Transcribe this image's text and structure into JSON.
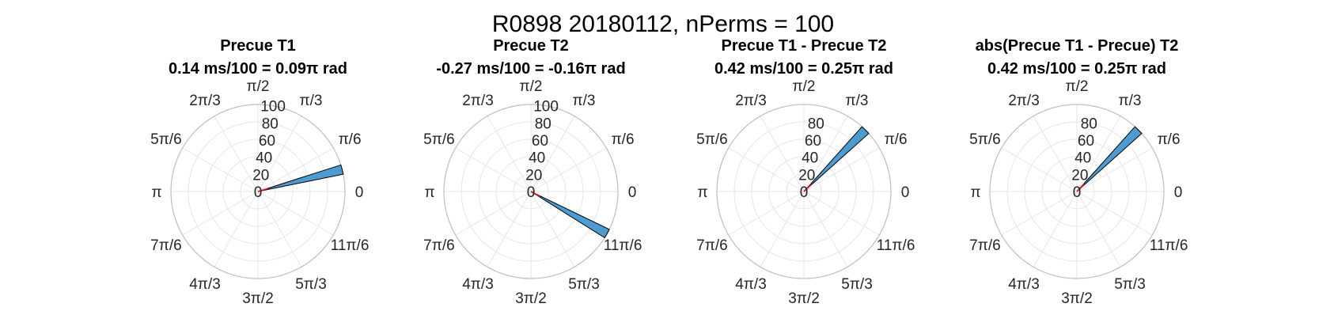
{
  "figure_title": "R0898 20180112, nPerms = 100",
  "colors": {
    "bar_fill": "#4d9bd1",
    "bar_edge": "#000000",
    "mean_line": "#d2151c",
    "grid": "#e6e6e6",
    "outer_ring": "#bfbfbf"
  },
  "chart_data": [
    {
      "type": "polar-histogram",
      "title_line1": "Precue T1",
      "title_line2": "0.14 ms/100 = 0.09π rad",
      "theta_ticks": [
        "0",
        "π/6",
        "π/3",
        "π/2",
        "2π/3",
        "5π/6",
        "π",
        "7π/6",
        "4π/3",
        "3π/2",
        "5π/3",
        "11π/6"
      ],
      "r_ticks": [
        0,
        20,
        40,
        60,
        80,
        100
      ],
      "rlim": [
        0,
        100
      ],
      "bars": [
        {
          "theta_start_rad": 0.2,
          "theta_end_rad": 0.31,
          "count": 100
        }
      ],
      "mean_angle_rad": 0.28
    },
    {
      "type": "polar-histogram",
      "title_line1": "Precue T2",
      "title_line2": "-0.27 ms/100 = -0.16π rad",
      "theta_ticks": [
        "0",
        "π/6",
        "π/3",
        "π/2",
        "2π/3",
        "5π/6",
        "π",
        "7π/6",
        "4π/3",
        "3π/2",
        "5π/3",
        "11π/6"
      ],
      "r_ticks": [
        0,
        20,
        40,
        60,
        80,
        100
      ],
      "rlim": [
        0,
        100
      ],
      "bars": [
        {
          "theta_start_rad": -0.56,
          "theta_end_rad": -0.45,
          "count": 100
        }
      ],
      "mean_angle_rad": -0.5
    },
    {
      "type": "polar-histogram",
      "title_line1": "Precue T1 - Precue T2",
      "title_line2": "0.42 ms/100 = 0.25π rad",
      "theta_ticks": [
        "0",
        "π/6",
        "π/3",
        "π/2",
        "2π/3",
        "5π/6",
        "π",
        "7π/6",
        "4π/3",
        "3π/2",
        "5π/3",
        "11π/6"
      ],
      "r_ticks": [
        0,
        20,
        40,
        60,
        80
      ],
      "rlim": [
        0,
        100
      ],
      "bars": [
        {
          "theta_start_rad": 0.73,
          "theta_end_rad": 0.84,
          "count": 100
        }
      ],
      "mean_angle_rad": 0.785
    },
    {
      "type": "polar-histogram",
      "title_line1": "abs(Precue T1 - Precue) T2",
      "title_line2": "0.42 ms/100 = 0.25π rad",
      "theta_ticks": [
        "0",
        "π/6",
        "π/3",
        "π/2",
        "2π/3",
        "5π/6",
        "π",
        "7π/6",
        "4π/3",
        "3π/2",
        "5π/3",
        "11π/6"
      ],
      "r_ticks": [
        0,
        20,
        40,
        60,
        80
      ],
      "rlim": [
        0,
        100
      ],
      "bars": [
        {
          "theta_start_rad": 0.73,
          "theta_end_rad": 0.84,
          "count": 100
        }
      ],
      "mean_angle_rad": 0.785
    }
  ]
}
